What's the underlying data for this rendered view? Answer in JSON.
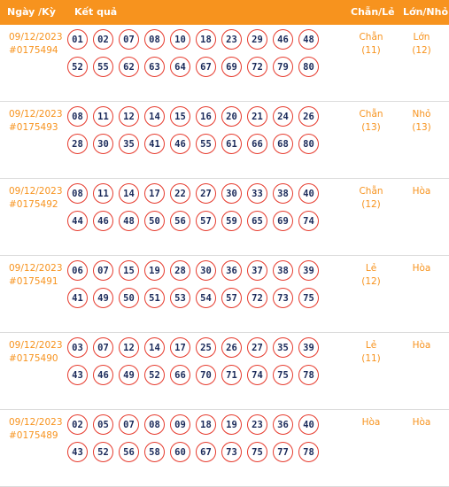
{
  "header": {
    "date": "Ngày /Kỳ",
    "result": "Kết quả",
    "chan_le": "Chẵn/Lẻ",
    "lon_nho": "Lớn/Nhỏ"
  },
  "rows": [
    {
      "date": "09/12/2023",
      "ky": "#0175494",
      "numbers": [
        "01",
        "02",
        "07",
        "08",
        "10",
        "18",
        "23",
        "29",
        "46",
        "48",
        "52",
        "55",
        "62",
        "63",
        "64",
        "67",
        "69",
        "72",
        "79",
        "80"
      ],
      "chan_le": "Chẵn",
      "chan_le_count": "(11)",
      "lon_nho": "Lớn",
      "lon_nho_count": "(12)"
    },
    {
      "date": "09/12/2023",
      "ky": "#0175493",
      "numbers": [
        "08",
        "11",
        "12",
        "14",
        "15",
        "16",
        "20",
        "21",
        "24",
        "26",
        "28",
        "30",
        "35",
        "41",
        "46",
        "55",
        "61",
        "66",
        "68",
        "80"
      ],
      "chan_le": "Chẵn",
      "chan_le_count": "(13)",
      "lon_nho": "Nhỏ",
      "lon_nho_count": "(13)"
    },
    {
      "date": "09/12/2023",
      "ky": "#0175492",
      "numbers": [
        "08",
        "11",
        "14",
        "17",
        "22",
        "27",
        "30",
        "33",
        "38",
        "40",
        "44",
        "46",
        "48",
        "50",
        "56",
        "57",
        "59",
        "65",
        "69",
        "74"
      ],
      "chan_le": "Chẵn",
      "chan_le_count": "(12)",
      "lon_nho": "Hòa",
      "lon_nho_count": ""
    },
    {
      "date": "09/12/2023",
      "ky": "#0175491",
      "numbers": [
        "06",
        "07",
        "15",
        "19",
        "28",
        "30",
        "36",
        "37",
        "38",
        "39",
        "41",
        "49",
        "50",
        "51",
        "53",
        "54",
        "57",
        "72",
        "73",
        "75"
      ],
      "chan_le": "Lẻ",
      "chan_le_count": "(12)",
      "lon_nho": "Hòa",
      "lon_nho_count": ""
    },
    {
      "date": "09/12/2023",
      "ky": "#0175490",
      "numbers": [
        "03",
        "07",
        "12",
        "14",
        "17",
        "25",
        "26",
        "27",
        "35",
        "39",
        "43",
        "46",
        "49",
        "52",
        "66",
        "70",
        "71",
        "74",
        "75",
        "78"
      ],
      "chan_le": "Lẻ",
      "chan_le_count": "(11)",
      "lon_nho": "Hòa",
      "lon_nho_count": ""
    },
    {
      "date": "09/12/2023",
      "ky": "#0175489",
      "numbers": [
        "02",
        "05",
        "07",
        "08",
        "09",
        "18",
        "19",
        "23",
        "36",
        "40",
        "43",
        "52",
        "56",
        "58",
        "60",
        "67",
        "73",
        "75",
        "77",
        "78"
      ],
      "chan_le": "Hòa",
      "chan_le_count": "",
      "lon_nho": "Hòa",
      "lon_nho_count": ""
    }
  ]
}
